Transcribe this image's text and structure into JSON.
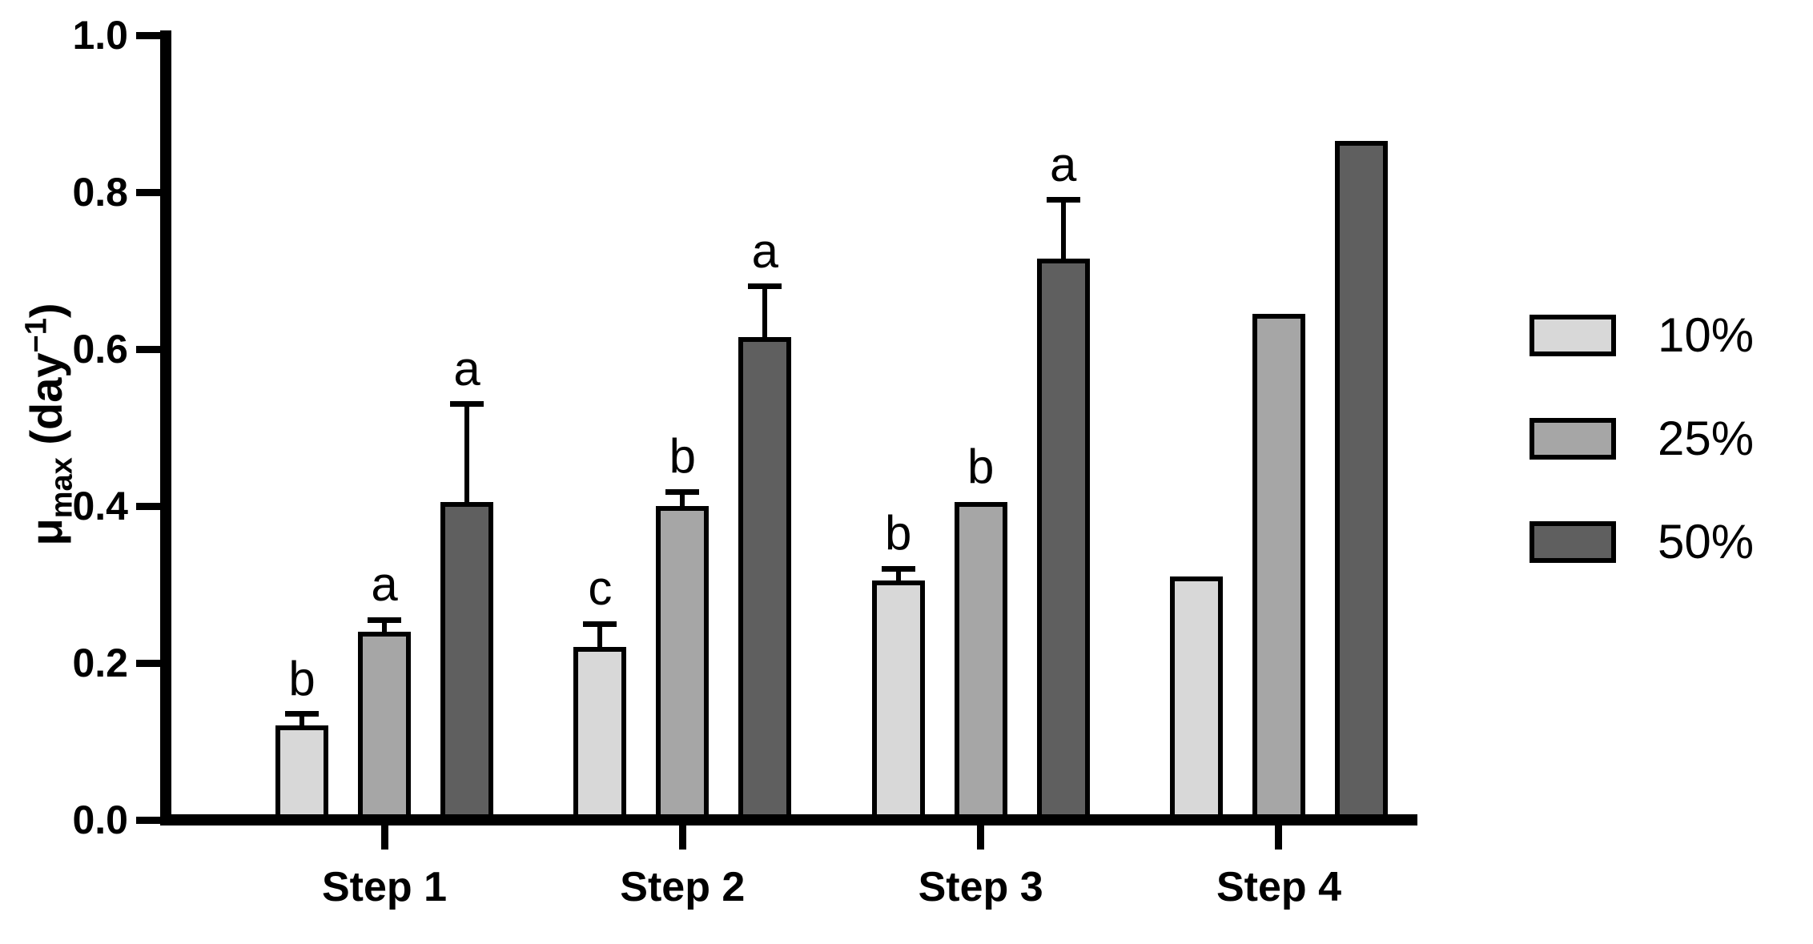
{
  "chart_data": {
    "type": "bar",
    "title": "",
    "xlabel": "",
    "ylabel_text": "μmax (day−1)",
    "ylabel_parts": {
      "mu": "μ",
      "sub": "max",
      "mid": " (day",
      "sup": "−1",
      "end": ")"
    },
    "categories": [
      "Step 1",
      "Step 2",
      "Step 3",
      "Step 4"
    ],
    "series": [
      {
        "name": "10%",
        "color": "#d8d8d8",
        "values": [
          0.12,
          0.22,
          0.305,
          0.31
        ],
        "errors_plus": [
          0.015,
          0.03,
          0.015,
          0
        ],
        "letters": [
          "b",
          "c",
          "b",
          ""
        ]
      },
      {
        "name": "25%",
        "color": "#a6a6a6",
        "values": [
          0.24,
          0.4,
          0.405,
          0.645
        ],
        "errors_plus": [
          0.015,
          0.018,
          0,
          0
        ],
        "letters": [
          "a",
          "b",
          "b",
          ""
        ]
      },
      {
        "name": "50%",
        "color": "#5f5f5f",
        "values": [
          0.405,
          0.615,
          0.715,
          0.865
        ],
        "errors_plus": [
          0.125,
          0.065,
          0.075,
          0
        ],
        "letters": [
          "a",
          "a",
          "a",
          ""
        ]
      }
    ],
    "ylim": [
      0.0,
      1.0
    ],
    "yticks": [
      {
        "value": 0.0,
        "label": "0.0"
      },
      {
        "value": 0.2,
        "label": "0.2"
      },
      {
        "value": 0.4,
        "label": "0.4"
      },
      {
        "value": 0.6,
        "label": "0.6"
      },
      {
        "value": 0.8,
        "label": "0.8"
      },
      {
        "value": 1.0,
        "label": "1.0"
      }
    ],
    "grid": false,
    "legend_position": "right",
    "axis_color": "#000000",
    "bar_outline_color": "#000000",
    "background_color": "#ffffff",
    "error_bar_direction": "upper-only"
  }
}
